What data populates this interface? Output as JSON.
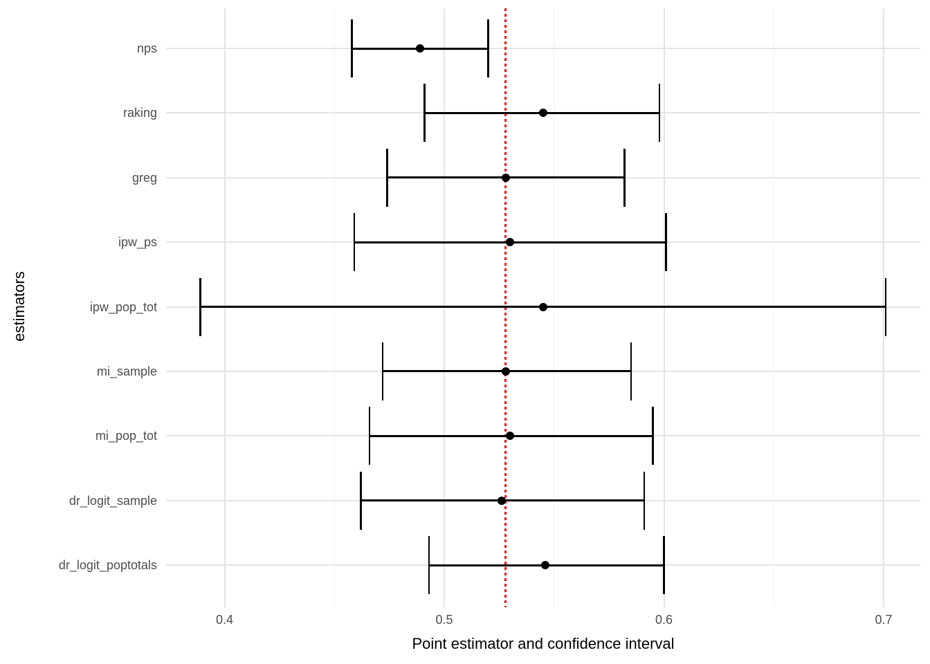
{
  "chart_data": {
    "type": "scatter",
    "subtype": "dot-and-whisker forest plot (point estimates with confidence interval error bars)",
    "title": "",
    "xlabel": "Point estimator and confidence interval",
    "ylabel": "estimators",
    "x_ticks": [
      0.4,
      0.5,
      0.6,
      0.7
    ],
    "x_minor_ticks": [
      0.45,
      0.55,
      0.65
    ],
    "xlim": [
      0.373,
      0.717
    ],
    "grid": true,
    "legend": null,
    "categories": [
      "nps",
      "raking",
      "greg",
      "ipw_ps",
      "ipw_pop_tot",
      "mi_sample",
      "mi_pop_tot",
      "dr_logit_sample",
      "dr_logit_poptotals"
    ],
    "series": [
      {
        "name": "point_estimate",
        "values": [
          0.489,
          0.545,
          0.528,
          0.53,
          0.545,
          0.528,
          0.53,
          0.526,
          0.546
        ]
      },
      {
        "name": "ci_lower",
        "values": [
          0.458,
          0.491,
          0.474,
          0.459,
          0.389,
          0.472,
          0.466,
          0.462,
          0.493
        ]
      },
      {
        "name": "ci_upper",
        "values": [
          0.52,
          0.598,
          0.582,
          0.601,
          0.701,
          0.585,
          0.595,
          0.591,
          0.6
        ]
      }
    ],
    "reference_line": {
      "x": 0.528,
      "style": "dotted",
      "color": "#ff0000",
      "orientation": "vertical"
    },
    "colors": {
      "errorbar": "#000000",
      "point": "#000000",
      "grid_major": "#e4e4e4",
      "grid_minor": "#f0f0f0",
      "tick_label": "#4d4d4d",
      "axis_title": "#000000",
      "background": "#ffffff"
    }
  }
}
